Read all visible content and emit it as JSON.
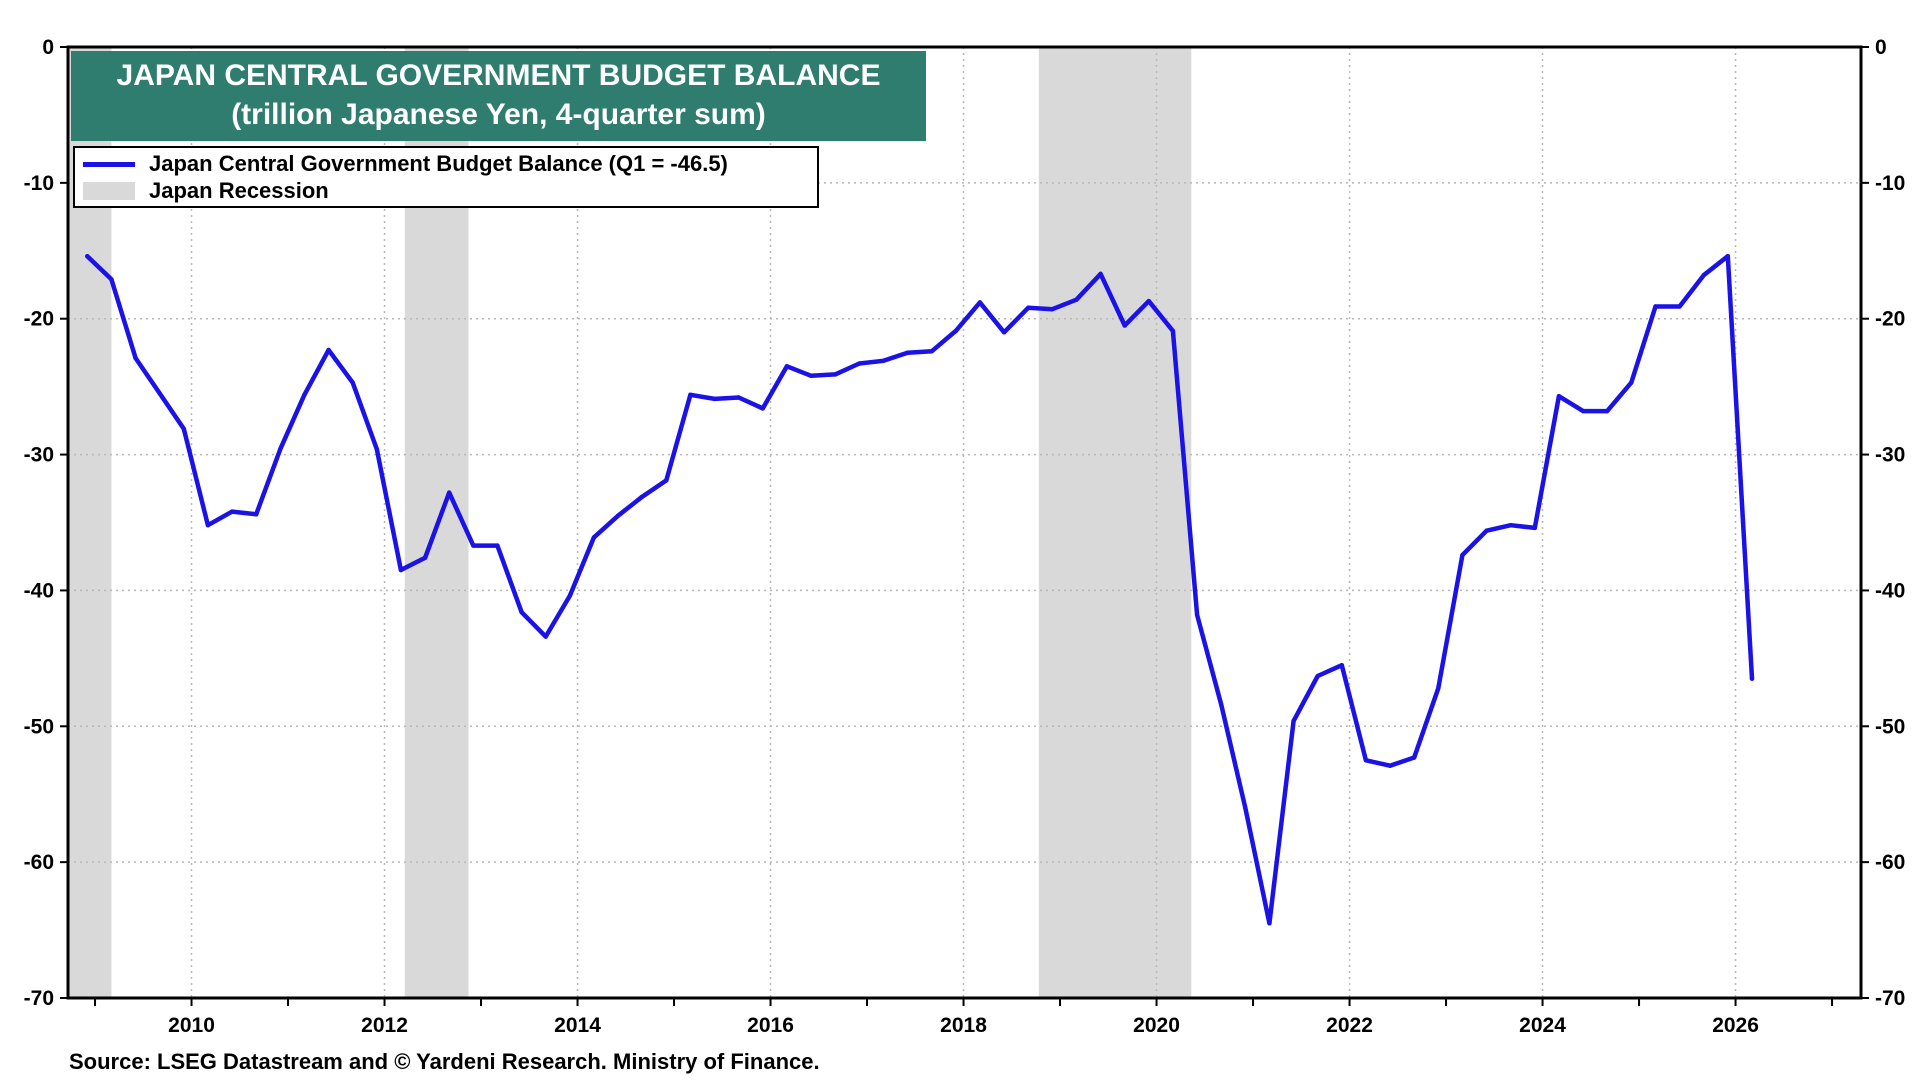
{
  "chart_data": {
    "type": "line",
    "title": "JAPAN CENTRAL GOVERNMENT BUDGET BALANCE",
    "subtitle": "(trillion Japanese Yen, 4-quarter sum)",
    "source": "Source: LSEG Datastream and © Yardeni Research. Ministry of Finance.",
    "xlim": [
      2008.72,
      2027.3
    ],
    "ylim": [
      -70,
      0
    ],
    "x_ticks": [
      2010,
      2012,
      2014,
      2016,
      2018,
      2020,
      2022,
      2024,
      2026
    ],
    "x_tick_labels": [
      "2010",
      "2012",
      "2014",
      "2016",
      "2018",
      "2020",
      "2022",
      "2024",
      "2026"
    ],
    "y_ticks": [
      0,
      -10,
      -20,
      -30,
      -40,
      -50,
      -60,
      -70
    ],
    "y_tick_labels": [
      "0",
      "-10",
      "-20",
      "-30",
      "-40",
      "-50",
      "-60",
      "-70"
    ],
    "grid": true,
    "legend_placement": "top-left",
    "legend": [
      {
        "label": "Japan Central Government Budget Balance (Q1 = -46.5)",
        "type": "line",
        "color": "#1a12e6"
      },
      {
        "label": "Japan Recession",
        "type": "area",
        "color": "#d9d9d9"
      }
    ],
    "recessions": [
      {
        "start": 2008.72,
        "end": 2009.17
      },
      {
        "start": 2012.21,
        "end": 2012.87
      },
      {
        "start": 2018.78,
        "end": 2020.36
      }
    ],
    "series": [
      {
        "color": "#1a12e6",
        "x": [
          2008.92,
          2009.17,
          2009.42,
          2009.67,
          2009.92,
          2010.17,
          2010.42,
          2010.67,
          2010.92,
          2011.17,
          2011.42,
          2011.67,
          2011.92,
          2012.17,
          2012.42,
          2012.67,
          2012.92,
          2013.17,
          2013.42,
          2013.67,
          2013.92,
          2014.17,
          2014.42,
          2014.67,
          2014.92,
          2015.17,
          2015.42,
          2015.67,
          2015.92,
          2016.17,
          2016.42,
          2016.67,
          2016.92,
          2017.17,
          2017.42,
          2017.67,
          2017.92,
          2018.17,
          2018.42,
          2018.67,
          2018.92,
          2019.17,
          2019.42,
          2019.67,
          2019.92,
          2020.17,
          2020.42,
          2020.67,
          2020.92,
          2021.17,
          2021.42,
          2021.67,
          2021.92,
          2022.17,
          2022.42,
          2022.67,
          2022.92,
          2023.17,
          2023.42,
          2023.67,
          2023.92,
          2024.17,
          2024.42,
          2024.67,
          2024.92,
          2025.17,
          2025.42,
          2025.67,
          2025.92,
          2026.17
        ],
        "values": [
          -15.4,
          -17.1,
          -22.9,
          -25.5,
          -28.1,
          -35.2,
          -34.2,
          -34.4,
          -29.6,
          -25.6,
          -22.3,
          -24.7,
          -29.6,
          -38.5,
          -37.6,
          -32.8,
          -36.7,
          -36.7,
          -41.6,
          -43.4,
          -40.4,
          -36.1,
          -34.5,
          -33.1,
          -31.9,
          -25.6,
          -25.9,
          -25.8,
          -26.6,
          -23.5,
          -24.2,
          -24.1,
          -23.3,
          -23.1,
          -22.5,
          -22.4,
          -20.9,
          -18.8,
          -21.0,
          -19.2,
          -19.3,
          -18.6,
          -16.7,
          -20.5,
          -18.7,
          -20.9,
          -41.8,
          -48.4,
          -56.0,
          -64.5,
          -49.6,
          -46.3,
          -45.5,
          -52.5,
          -52.9,
          -52.3,
          -47.2,
          -37.4,
          -35.6,
          -35.2,
          -35.4,
          -25.7,
          -26.8,
          -26.8,
          -24.7,
          -19.1,
          -19.1,
          -16.8,
          -15.4,
          -46.5
        ]
      }
    ]
  }
}
